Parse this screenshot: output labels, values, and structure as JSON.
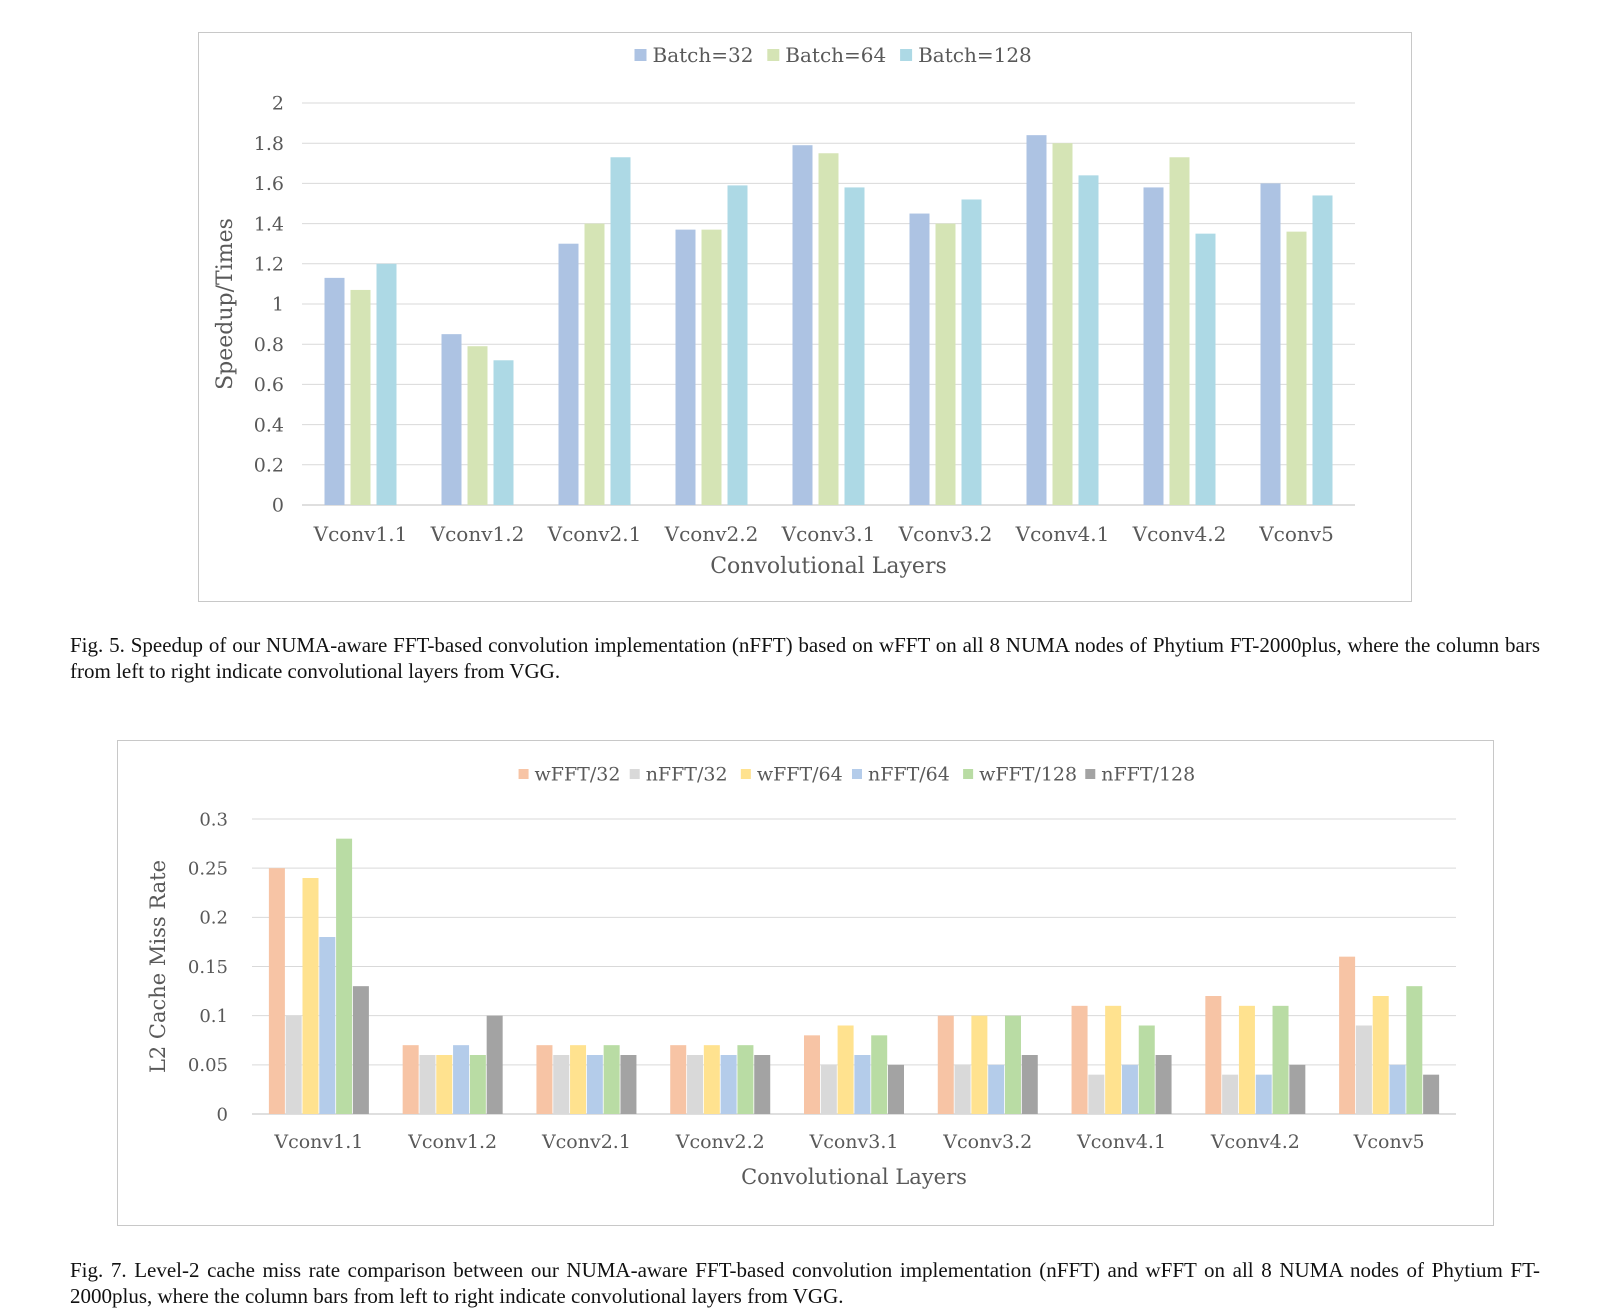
{
  "figure5": {
    "caption": "Fig. 5.  Speedup of our NUMA-aware FFT-based convolution implementation (nFFT) based on wFFT on all 8 NUMA nodes of Phytium FT-2000plus, where the column bars from left to right indicate convolutional layers from VGG.",
    "chart_data": {
      "type": "bar",
      "categories": [
        "Vconv1.1",
        "Vconv1.2",
        "Vconv2.1",
        "Vconv2.2",
        "Vconv3.1",
        "Vconv3.2",
        "Vconv4.1",
        "Vconv4.2",
        "Vconv5"
      ],
      "series": [
        {
          "name": "Batch=32",
          "color": "#adc3e3",
          "values": [
            1.13,
            0.85,
            1.3,
            1.37,
            1.79,
            1.45,
            1.84,
            1.58,
            1.6
          ]
        },
        {
          "name": "Batch=64",
          "color": "#d5e4b5",
          "values": [
            1.07,
            0.79,
            1.4,
            1.37,
            1.75,
            1.4,
            1.8,
            1.73,
            1.36
          ]
        },
        {
          "name": "Batch=128",
          "color": "#add9e5",
          "values": [
            1.2,
            0.72,
            1.73,
            1.59,
            1.58,
            1.52,
            1.64,
            1.35,
            1.54
          ]
        }
      ],
      "yticks": [
        "0",
        "0.2",
        "0.4",
        "0.6",
        "0.8",
        "1",
        "1.2",
        "1.4",
        "1.6",
        "1.8",
        "2"
      ],
      "ylim": [
        0,
        2
      ],
      "xlabel": "Convolutional Layers",
      "ylabel": "Speedup/Times",
      "grid": true,
      "legend": "top-center"
    }
  },
  "figure7": {
    "caption": "Fig. 7.  Level-2 cache miss rate comparison between our NUMA-aware FFT-based convolution implementation (nFFT) and wFFT on all 8 NUMA nodes of Phytium FT-2000plus, where the column bars from left to right indicate convolutional layers from VGG.",
    "chart_data": {
      "type": "bar",
      "categories": [
        "Vconv1.1",
        "Vconv1.2",
        "Vconv2.1",
        "Vconv2.2",
        "Vconv3.1",
        "Vconv3.2",
        "Vconv4.1",
        "Vconv4.2",
        "Vconv5"
      ],
      "series": [
        {
          "name": "wFFT/32",
          "color": "#f7c4a5",
          "values": [
            0.25,
            0.07,
            0.07,
            0.07,
            0.08,
            0.1,
            0.11,
            0.12,
            0.16
          ]
        },
        {
          "name": "nFFT/32",
          "color": "#d9d9d9",
          "values": [
            0.1,
            0.06,
            0.06,
            0.06,
            0.05,
            0.05,
            0.04,
            0.04,
            0.09
          ]
        },
        {
          "name": "wFFT/64",
          "color": "#ffe28f",
          "values": [
            0.24,
            0.06,
            0.07,
            0.07,
            0.09,
            0.1,
            0.11,
            0.11,
            0.12
          ]
        },
        {
          "name": "nFFT/64",
          "color": "#b4ccea",
          "values": [
            0.18,
            0.07,
            0.06,
            0.06,
            0.06,
            0.05,
            0.05,
            0.04,
            0.05
          ]
        },
        {
          "name": "wFFT/128",
          "color": "#b9dca4",
          "values": [
            0.28,
            0.06,
            0.07,
            0.07,
            0.08,
            0.1,
            0.09,
            0.11,
            0.13
          ]
        },
        {
          "name": "nFFT/128",
          "color": "#a3a3a3",
          "values": [
            0.13,
            0.1,
            0.06,
            0.06,
            0.05,
            0.06,
            0.06,
            0.05,
            0.04
          ]
        }
      ],
      "yticks": [
        "0",
        "0.05",
        "0.1",
        "0.15",
        "0.2",
        "0.25",
        "0.3"
      ],
      "ylim": [
        0,
        0.3
      ],
      "xlabel": "Convolutional Layers",
      "ylabel": "L2 Cache Miss Rate",
      "grid": true,
      "legend": "top-center"
    }
  }
}
